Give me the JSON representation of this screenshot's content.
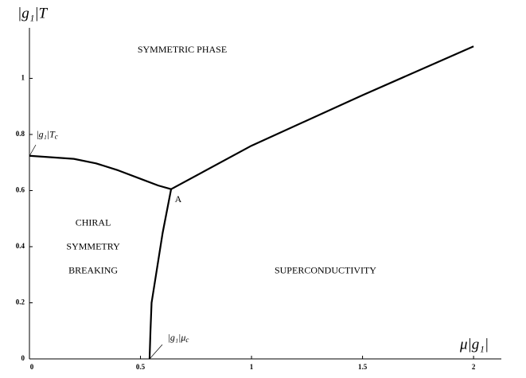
{
  "chart_data": {
    "type": "line",
    "xlabel": "μ|g₁|",
    "ylabel": "|g₁|T",
    "series": [
      {
        "color": "#000000",
        "x": [
          0,
          0.2,
          0.3,
          0.4,
          0.5,
          0.58,
          0.638
        ],
        "values": [
          0.724,
          0.713,
          0.697,
          0.672,
          0.642,
          0.618,
          0.605
        ]
      },
      {
        "color": "#000000",
        "x": [
          0.638,
          1.0,
          1.5,
          2.0
        ],
        "values": [
          0.605,
          0.76,
          0.94,
          1.114
        ]
      },
      {
        "color": "#000000",
        "x": [
          0.638,
          0.6,
          0.57,
          0.55,
          0.545,
          0.541
        ],
        "values": [
          0.605,
          0.45,
          0.3,
          0.2,
          0.1,
          0
        ]
      }
    ],
    "annotations": [
      {
        "text": "SYMMETRIC PHASE",
        "x": 0.688,
        "y": 1.1
      },
      {
        "text": "CHIRAL",
        "x": 0.287,
        "y": 0.483
      },
      {
        "text": "SYMMETRY",
        "x": 0.287,
        "y": 0.398
      },
      {
        "text": "BREAKING",
        "x": 0.287,
        "y": 0.313
      },
      {
        "text": "SUPERCONDUCTIVITY",
        "x": 1.333,
        "y": 0.313
      },
      {
        "text": "A",
        "x": 0.67,
        "y": 0.568
      },
      {
        "text": "|g₁|T",
        "sub": "c",
        "x": 0.079,
        "y": 0.798
      },
      {
        "text": "|g₁|μ",
        "sub": "c",
        "x": 0.67,
        "y": 0.074
      }
    ],
    "xlim": [
      0,
      2.125
    ],
    "xticks": [
      0,
      0.5,
      1,
      1.5,
      2
    ],
    "ylim": [
      0,
      1.18
    ],
    "yticks": [
      0,
      0.2,
      0.4,
      0.6,
      0.8,
      1
    ]
  }
}
